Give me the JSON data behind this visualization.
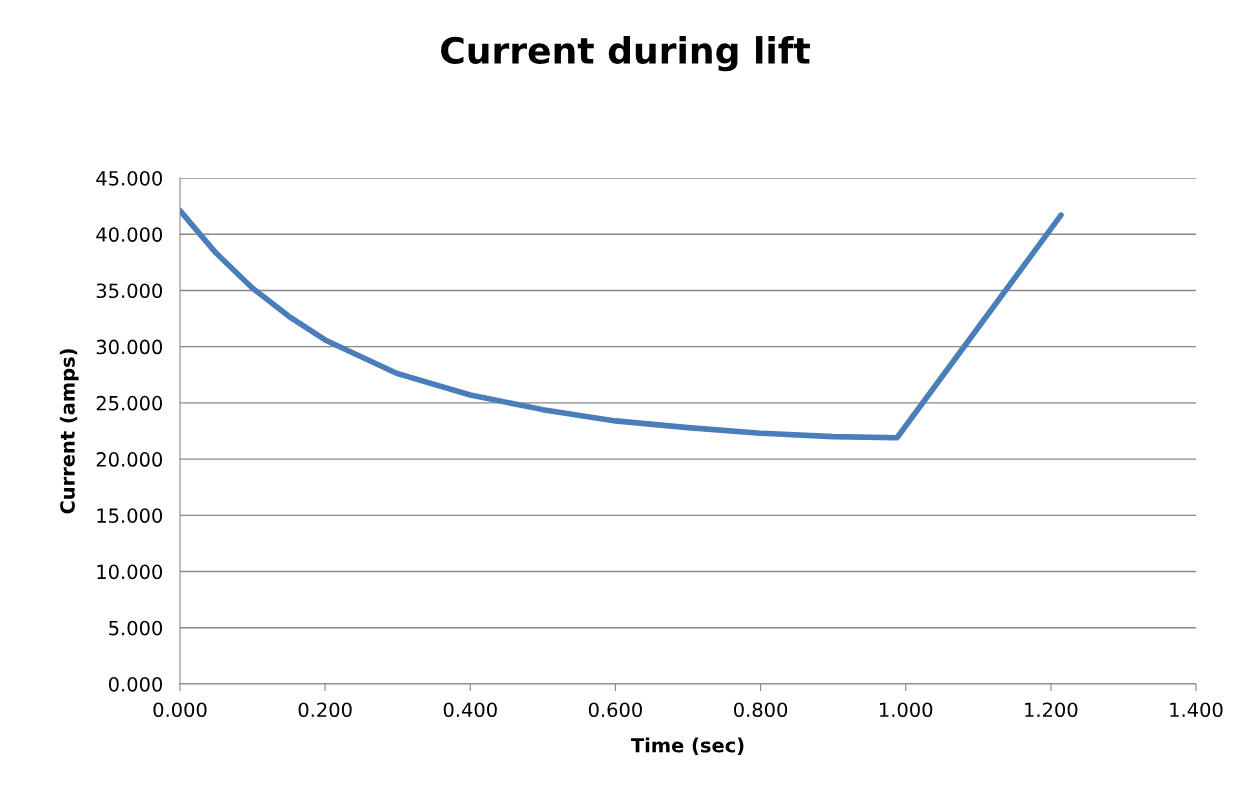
{
  "chart_data": {
    "type": "line",
    "title": "Current during lift",
    "xlabel": "Time (sec)",
    "ylabel": "Current (amps)",
    "x": [
      0,
      0.05,
      0.1,
      0.15,
      0.2,
      0.3,
      0.4,
      0.5,
      0.6,
      0.7,
      0.8,
      0.9,
      0.988,
      1.214
    ],
    "series": [
      {
        "color": "#4a7ebb",
        "values": [
          42.1,
          38.3,
          35.2,
          32.7,
          30.6,
          27.6,
          25.7,
          24.4,
          23.4,
          22.8,
          22.3,
          22.0,
          21.9,
          41.7
        ]
      }
    ],
    "xlim": [
      0,
      1.4
    ],
    "xticks": [
      {
        "value": 0,
        "label": "0.000"
      },
      {
        "value": 0.2,
        "label": "0.200"
      },
      {
        "value": 0.4,
        "label": "0.400"
      },
      {
        "value": 0.6,
        "label": "0.600"
      },
      {
        "value": 0.8,
        "label": "0.800"
      },
      {
        "value": 1.0,
        "label": "1.000"
      },
      {
        "value": 1.2,
        "label": "1.200"
      },
      {
        "value": 1.4,
        "label": "1.400"
      }
    ],
    "ylim": [
      0,
      45
    ],
    "yticks": [
      {
        "value": 0,
        "label": "0.000"
      },
      {
        "value": 5,
        "label": "5.000"
      },
      {
        "value": 10,
        "label": "10.000"
      },
      {
        "value": 15,
        "label": "15.000"
      },
      {
        "value": 20,
        "label": "20.000"
      },
      {
        "value": 25,
        "label": "25.000"
      },
      {
        "value": 30,
        "label": "30.000"
      },
      {
        "value": 35,
        "label": "35.000"
      },
      {
        "value": 40,
        "label": "40.000"
      },
      {
        "value": 45,
        "label": "45.000"
      }
    ],
    "grid": "y",
    "marker": "none",
    "line_style": "solid",
    "legend": false
  }
}
